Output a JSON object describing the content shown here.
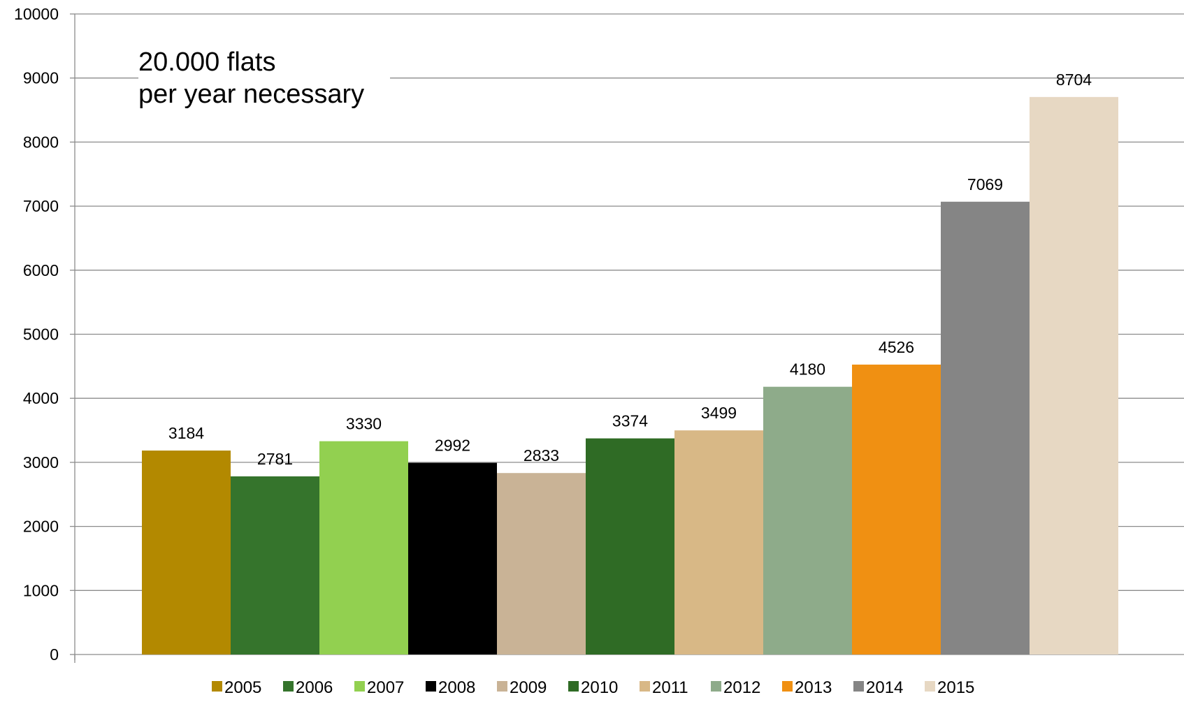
{
  "chart_data": {
    "type": "bar",
    "categories": [
      "2005",
      "2006",
      "2007",
      "2008",
      "2009",
      "2010",
      "2011",
      "2012",
      "2013",
      "2014",
      "2015"
    ],
    "values": [
      3184,
      2781,
      3330,
      2992,
      2833,
      3374,
      3499,
      4180,
      4526,
      7069,
      8704
    ],
    "colors": [
      "#b38900",
      "#35742c",
      "#92d050",
      "#000000",
      "#c9b396",
      "#2f6b25",
      "#d8b886",
      "#8eab8a",
      "#f09012",
      "#858585",
      "#e7d8c3"
    ],
    "ylim": [
      0,
      10000
    ],
    "yticks": [
      "0",
      "1000",
      "2000",
      "3000",
      "4000",
      "5000",
      "6000",
      "7000",
      "8000",
      "9000",
      "10000"
    ],
    "grid": true,
    "legend": "bottom",
    "annotation": [
      "20.000 flats",
      "per year necessary"
    ]
  }
}
